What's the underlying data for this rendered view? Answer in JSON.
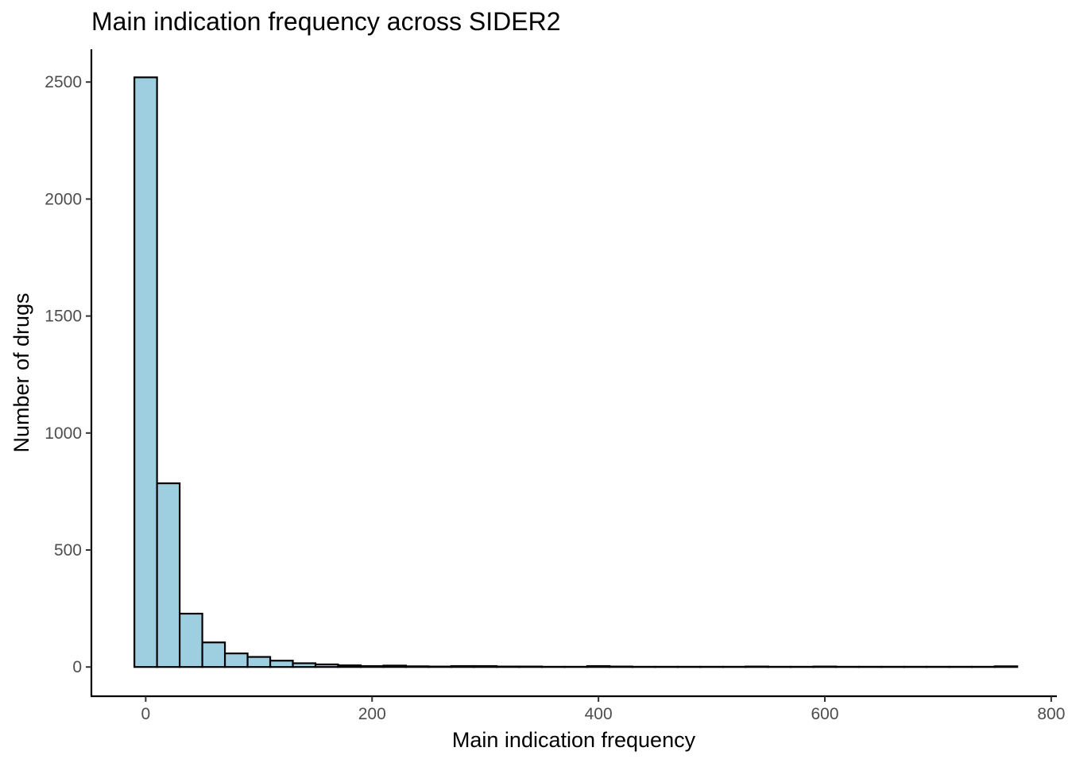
{
  "chart_data": {
    "type": "bar",
    "title": "Main indication frequency across SIDER2",
    "xlabel": "Main indication frequency",
    "ylabel": "Number of drugs",
    "xlim": [
      -48,
      805
    ],
    "ylim": [
      -125,
      2640
    ],
    "x_ticks": [
      0,
      200,
      400,
      600,
      800
    ],
    "y_ticks": [
      0,
      500,
      1000,
      1500,
      2000,
      2500
    ],
    "bin_width": 20,
    "bins": [
      {
        "x0": -10,
        "x1": 10,
        "count": 2520
      },
      {
        "x0": 10,
        "x1": 30,
        "count": 785
      },
      {
        "x0": 30,
        "x1": 50,
        "count": 228
      },
      {
        "x0": 50,
        "x1": 70,
        "count": 105
      },
      {
        "x0": 70,
        "x1": 90,
        "count": 58
      },
      {
        "x0": 90,
        "x1": 110,
        "count": 43
      },
      {
        "x0": 110,
        "x1": 130,
        "count": 27
      },
      {
        "x0": 130,
        "x1": 150,
        "count": 16
      },
      {
        "x0": 150,
        "x1": 170,
        "count": 11
      },
      {
        "x0": 170,
        "x1": 190,
        "count": 7
      },
      {
        "x0": 190,
        "x1": 210,
        "count": 4
      },
      {
        "x0": 210,
        "x1": 230,
        "count": 6
      },
      {
        "x0": 230,
        "x1": 250,
        "count": 3
      },
      {
        "x0": 250,
        "x1": 270,
        "count": 2
      },
      {
        "x0": 270,
        "x1": 290,
        "count": 4
      },
      {
        "x0": 290,
        "x1": 310,
        "count": 4
      },
      {
        "x0": 310,
        "x1": 330,
        "count": 2
      },
      {
        "x0": 330,
        "x1": 350,
        "count": 2
      },
      {
        "x0": 350,
        "x1": 370,
        "count": 1
      },
      {
        "x0": 370,
        "x1": 390,
        "count": 1
      },
      {
        "x0": 390,
        "x1": 410,
        "count": 4
      },
      {
        "x0": 410,
        "x1": 430,
        "count": 2
      },
      {
        "x0": 430,
        "x1": 450,
        "count": 1
      },
      {
        "x0": 450,
        "x1": 470,
        "count": 1
      },
      {
        "x0": 470,
        "x1": 490,
        "count": 1
      },
      {
        "x0": 490,
        "x1": 510,
        "count": 1
      },
      {
        "x0": 510,
        "x1": 530,
        "count": 1
      },
      {
        "x0": 530,
        "x1": 550,
        "count": 2
      },
      {
        "x0": 550,
        "x1": 570,
        "count": 1
      },
      {
        "x0": 570,
        "x1": 590,
        "count": 1
      },
      {
        "x0": 590,
        "x1": 610,
        "count": 2
      },
      {
        "x0": 610,
        "x1": 630,
        "count": 1
      },
      {
        "x0": 630,
        "x1": 650,
        "count": 1
      },
      {
        "x0": 650,
        "x1": 670,
        "count": 1
      },
      {
        "x0": 670,
        "x1": 690,
        "count": 1
      },
      {
        "x0": 690,
        "x1": 710,
        "count": 1
      },
      {
        "x0": 710,
        "x1": 730,
        "count": 1
      },
      {
        "x0": 730,
        "x1": 750,
        "count": 1
      },
      {
        "x0": 750,
        "x1": 770,
        "count": 3
      }
    ],
    "colors": {
      "fill": "#9ecfe0",
      "outline": "#000000",
      "background": "#ffffff"
    },
    "grid": false,
    "legend": "none"
  }
}
